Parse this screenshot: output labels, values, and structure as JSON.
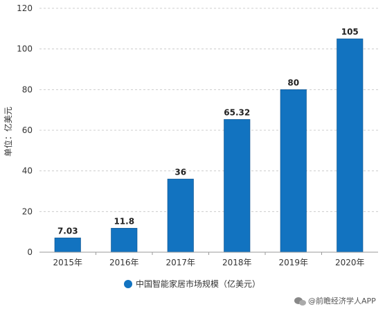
{
  "chart_data": {
    "type": "bar",
    "categories": [
      "2015年",
      "2016年",
      "2017年",
      "2018年",
      "2019年",
      "2020年"
    ],
    "series": [
      {
        "name": "中国智能家居市场规模（亿美元）",
        "values": [
          7.03,
          11.8,
          36,
          65.32,
          80,
          105
        ],
        "data_labels": [
          "7.03",
          "11.8",
          "36",
          "65.32",
          "80",
          "105"
        ],
        "color": "#1273C0"
      }
    ],
    "ylabel": "单位：亿美元",
    "ylim": [
      0,
      120
    ],
    "yticks": [
      0,
      20,
      40,
      60,
      80,
      100,
      120
    ],
    "ytick_labels": [
      "0",
      "20",
      "40",
      "60",
      "80",
      "100",
      "120"
    ],
    "grid": "horizontal-dashed",
    "legend": "bottom-center"
  },
  "credit": {
    "icon": "wechat-icon",
    "text": "@前瞻经济学人APP"
  }
}
